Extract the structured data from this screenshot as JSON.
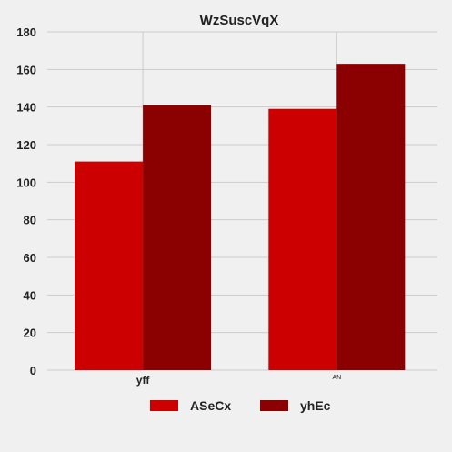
{
  "chart_data": {
    "type": "bar",
    "title": "WzSuscVqX",
    "categories": [
      "yff",
      "AN"
    ],
    "series": [
      {
        "name": "ASeCx",
        "color": "#cc0000",
        "values": [
          111,
          139
        ]
      },
      {
        "name": "yhEc",
        "color": "#8b0000",
        "values": [
          141,
          163
        ]
      }
    ],
    "ylim": [
      0,
      180
    ],
    "yticks": [
      0,
      20,
      40,
      60,
      80,
      100,
      120,
      140,
      160,
      180
    ],
    "grid": true,
    "legend_position": "bottom-center",
    "xlabel": "",
    "ylabel": ""
  }
}
